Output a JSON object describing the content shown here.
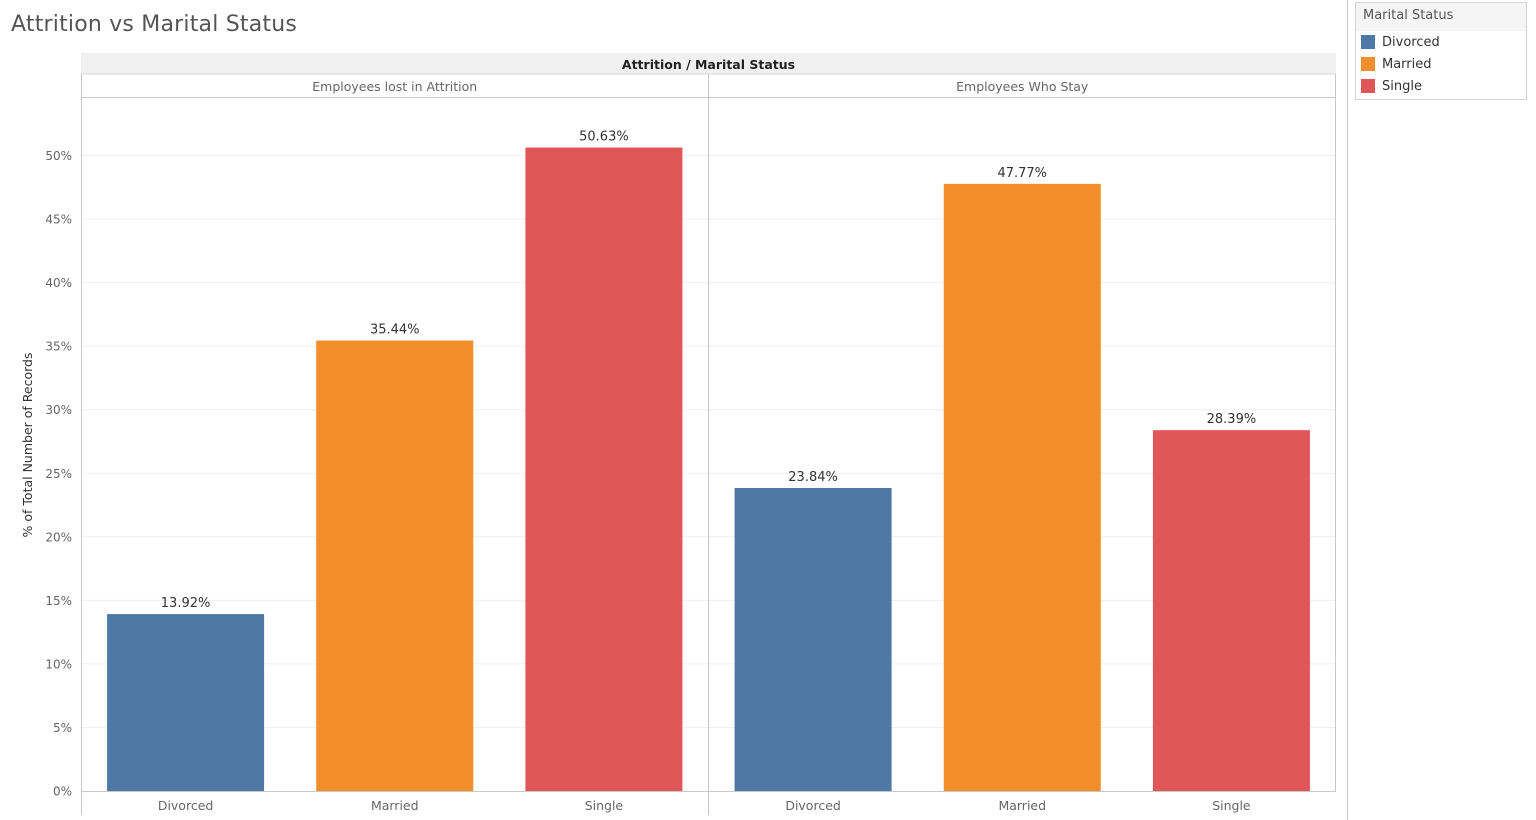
{
  "title": "Attrition vs Marital Status",
  "legend": {
    "title": "Marital Status",
    "items": [
      {
        "label": "Divorced",
        "color": "#4e79a7"
      },
      {
        "label": "Married",
        "color": "#f28e2b"
      },
      {
        "label": "Single",
        "color": "#e15759"
      }
    ]
  },
  "chart_data": {
    "type": "bar",
    "header": "Attrition / Marital Status",
    "ylabel": "% of Total Number of Records",
    "ylim": [
      0,
      55
    ],
    "yticks": [
      "0%",
      "5%",
      "10%",
      "15%",
      "20%",
      "25%",
      "30%",
      "35%",
      "40%",
      "45%",
      "50%"
    ],
    "grid": true,
    "legend_position": "top-right",
    "categories": [
      "Divorced",
      "Married",
      "Single"
    ],
    "panels": [
      {
        "name": "Employees lost in Attrition",
        "values": [
          13.92,
          35.44,
          50.63
        ],
        "labels": [
          "13.92%",
          "35.44%",
          "50.63%"
        ]
      },
      {
        "name": "Employees Who Stay",
        "values": [
          23.84,
          47.77,
          28.39
        ],
        "labels": [
          "23.84%",
          "47.77%",
          "28.39%"
        ]
      }
    ]
  }
}
